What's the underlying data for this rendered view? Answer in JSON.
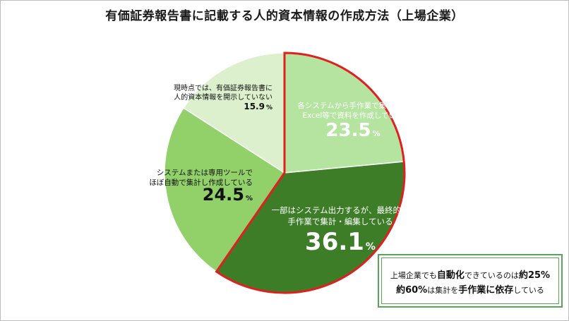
{
  "title": "有価証券報告書に記載する人的資本情報の作成方法（上場企業）",
  "colors": {
    "slice_1": "#b5e3a0",
    "slice_2": "#3d7d28",
    "slice_3": "#92d06a",
    "slice_4": "#dcf0cd",
    "highlight_border": "#e02020",
    "callout_border": "#5aa35a"
  },
  "chart_data": {
    "type": "pie",
    "start_angle_deg": 0,
    "direction": "clockwise",
    "slices": [
      {
        "label_lines": [
          "各システムから手作業で集計し、",
          "Excel等で資料を作成している"
        ],
        "value": 23.5,
        "value_text": "23.5",
        "unit": "%",
        "highlighted": true
      },
      {
        "label_lines": [
          "一部はシステム出力するが、最終的に",
          "手作業で集計・編集している"
        ],
        "value": 36.1,
        "value_text": "36.1",
        "unit": "%",
        "highlighted": true
      },
      {
        "label_lines": [
          "システムまたは専用ツールで",
          "ほぼ自動で集計し作成している"
        ],
        "value": 24.5,
        "value_text": "24.5",
        "unit": "%",
        "highlighted": false
      },
      {
        "label_lines": [
          "現時点では、有価証券報告書に",
          "人的資本情報を開示していない"
        ],
        "value": 15.9,
        "value_text": "15.9",
        "unit": "%",
        "highlighted": false
      }
    ]
  },
  "callout": {
    "line1": {
      "a": "上場企業でも",
      "b": "自動化",
      "c": "できているのは",
      "d": "約25%"
    },
    "line2": {
      "a": "約60%",
      "b": "は集計を",
      "c": "手作業に依存",
      "d": "している"
    }
  }
}
